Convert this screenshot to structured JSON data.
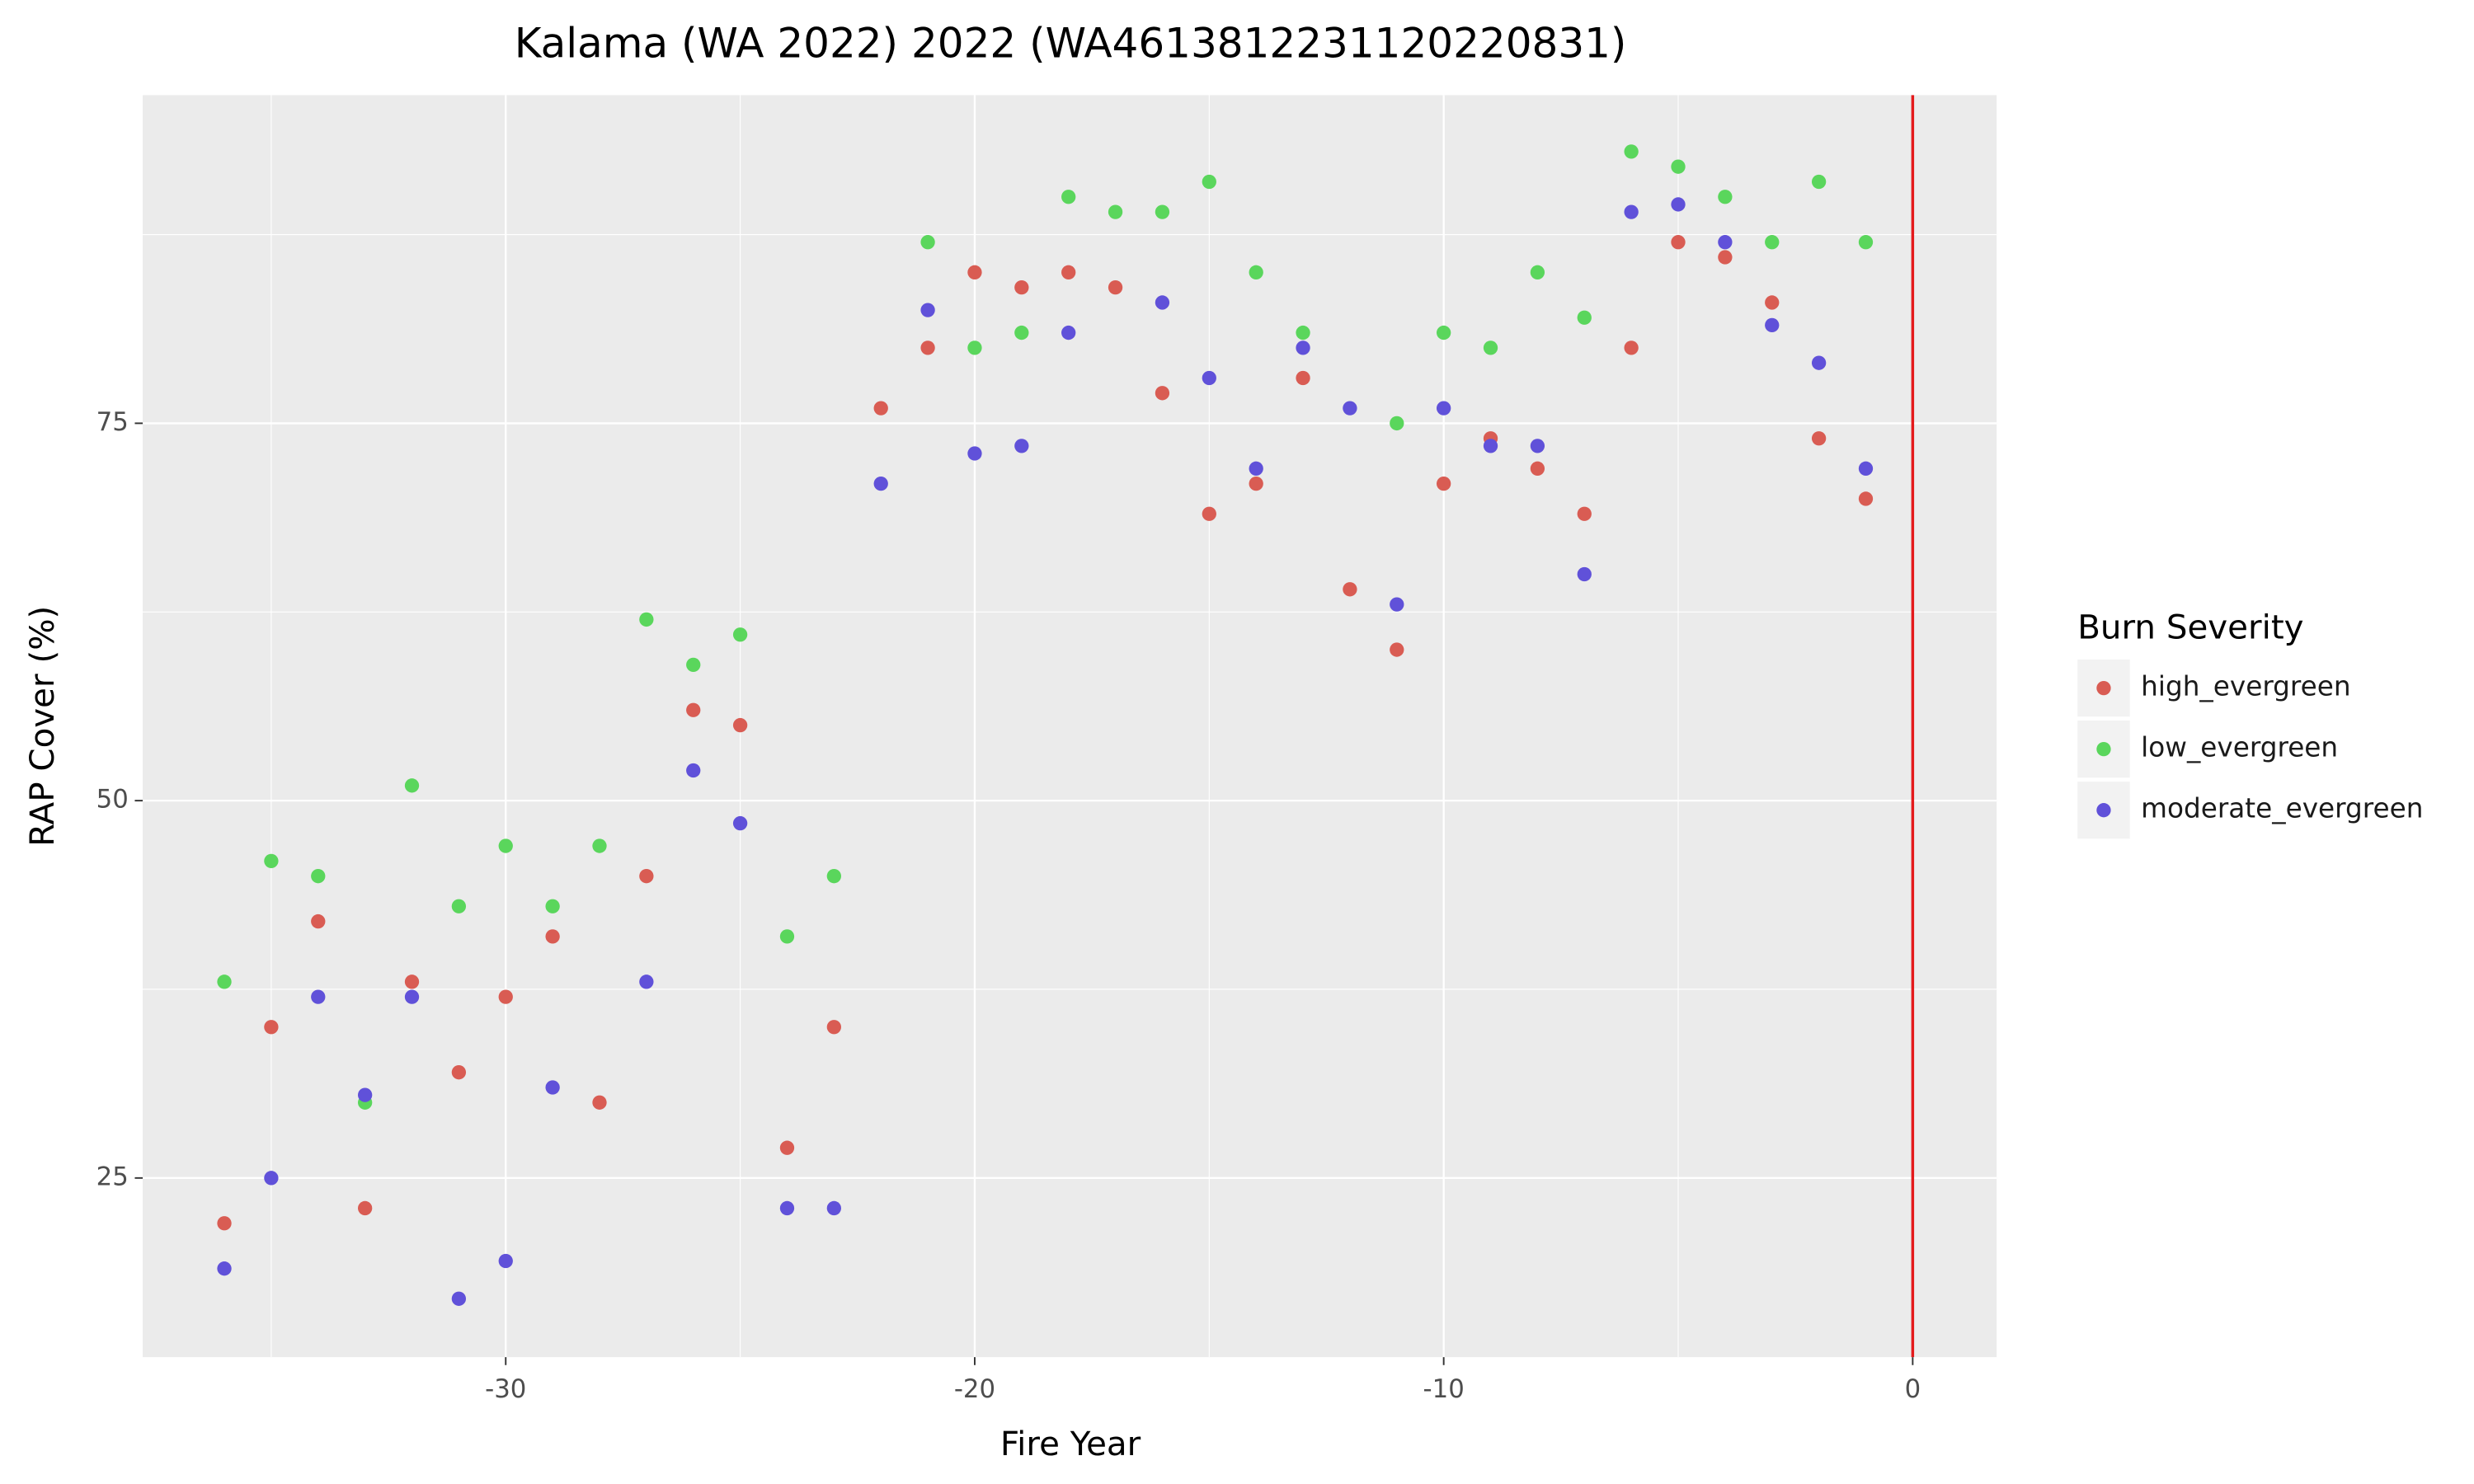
{
  "chart_data": {
    "type": "scatter",
    "title": "Kalama (WA 2022) 2022 (WA4613812231120220831)",
    "x_label": "Fire Year",
    "y_label": "RAP Cover (%)",
    "legend_title": "Burn Severity",
    "legend_position": "right",
    "xlim": [
      -37.74,
      1.79
    ],
    "ylim": [
      13.13,
      96.74
    ],
    "xticks": [
      -30,
      -20,
      -10,
      0
    ],
    "yticks": [
      25,
      50,
      75
    ],
    "minor_xticks": [
      -35,
      -25,
      -15,
      -5
    ],
    "minor_yticks": [
      37.5,
      62.5,
      87.5
    ],
    "grid": true,
    "vline": 0,
    "vline_color": "#e41a1c",
    "x": [
      -36,
      -35,
      -34,
      -33,
      -32,
      -31,
      -30,
      -29,
      -28,
      -27,
      -26,
      -25,
      -24,
      -23,
      -22,
      -21,
      -20,
      -19,
      -18,
      -17,
      -16,
      -15,
      -14,
      -13,
      -12,
      -11,
      -10,
      -9,
      -8,
      -7,
      -6,
      -5,
      -4,
      -3,
      -2,
      -1
    ],
    "series": [
      {
        "name": "high_evergreen",
        "color": "#d95c53",
        "values": [
          22,
          35,
          42,
          23,
          38,
          32,
          37,
          41,
          30,
          45,
          56,
          55,
          27,
          35,
          76,
          80,
          85,
          84,
          85,
          84,
          77,
          69,
          71,
          78,
          64,
          60,
          71,
          74,
          72,
          69,
          80,
          87,
          86,
          83,
          74,
          70
        ]
      },
      {
        "name": "low_evergreen",
        "color": "#5ad65c",
        "values": [
          38,
          46,
          45,
          30,
          51,
          43,
          47,
          43,
          47,
          62,
          59,
          61,
          41,
          45,
          null,
          87,
          80,
          81,
          90,
          89,
          89,
          91,
          85,
          81,
          null,
          75,
          81,
          80,
          85,
          82,
          93,
          92,
          90,
          87,
          91,
          87
        ]
      },
      {
        "name": "moderate_evergreen",
        "color": "#6051d9",
        "values": [
          19,
          25,
          37,
          30.5,
          37,
          17,
          19.5,
          31,
          null,
          38,
          52,
          48.5,
          23,
          23,
          71,
          82.5,
          73,
          73.5,
          81,
          null,
          83,
          78,
          72,
          80,
          76,
          63,
          76,
          73.5,
          73.5,
          65,
          89,
          89.5,
          87,
          81.5,
          79,
          72
        ]
      }
    ]
  }
}
